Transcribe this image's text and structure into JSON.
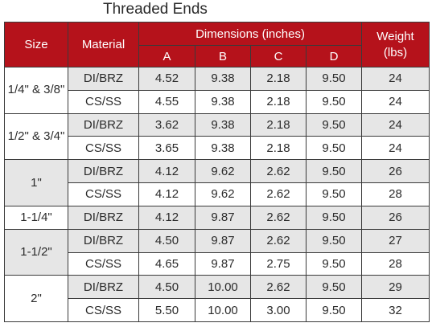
{
  "title": "Threaded Ends",
  "header": {
    "size": "Size",
    "material": "Material",
    "dimensions": "Dimensions (inches)",
    "a": "A",
    "b": "B",
    "c": "C",
    "d": "D",
    "weight": "Weight (lbs)"
  },
  "groups": [
    {
      "size": "1/4\" & 3/8\"",
      "rows": [
        {
          "material": "DI/BRZ",
          "a": "4.52",
          "b": "9.38",
          "c": "2.18",
          "d": "9.50",
          "weight": "24"
        },
        {
          "material": "CS/SS",
          "a": "4.55",
          "b": "9.38",
          "c": "2.18",
          "d": "9.50",
          "weight": "24"
        }
      ]
    },
    {
      "size": "1/2\" & 3/4\"",
      "rows": [
        {
          "material": "DI/BRZ",
          "a": "3.62",
          "b": "9.38",
          "c": "2.18",
          "d": "9.50",
          "weight": "24"
        },
        {
          "material": "CS/SS",
          "a": "3.65",
          "b": "9.38",
          "c": "2.18",
          "d": "9.50",
          "weight": "24"
        }
      ]
    },
    {
      "size": "1\"",
      "rows": [
        {
          "material": "DI/BRZ",
          "a": "4.12",
          "b": "9.62",
          "c": "2.62",
          "d": "9.50",
          "weight": "26"
        },
        {
          "material": "CS/SS",
          "a": "4.12",
          "b": "9.62",
          "c": "2.62",
          "d": "9.50",
          "weight": "28"
        }
      ]
    },
    {
      "size": "1-1/4\"",
      "rows": [
        {
          "material": "DI/BRZ",
          "a": "4.12",
          "b": "9.87",
          "c": "2.62",
          "d": "9.50",
          "weight": "26"
        }
      ]
    },
    {
      "size": "1-1/2\"",
      "rows": [
        {
          "material": "DI/BRZ",
          "a": "4.50",
          "b": "9.87",
          "c": "2.62",
          "d": "9.50",
          "weight": "27"
        },
        {
          "material": "CS/SS",
          "a": "4.65",
          "b": "9.87",
          "c": "2.75",
          "d": "9.50",
          "weight": "28"
        }
      ]
    },
    {
      "size": "2\"",
      "rows": [
        {
          "material": "DI/BRZ",
          "a": "4.50",
          "b": "10.00",
          "c": "2.62",
          "d": "9.50",
          "weight": "29"
        },
        {
          "material": "CS/SS",
          "a": "5.50",
          "b": "10.00",
          "c": "3.00",
          "d": "9.50",
          "weight": "32"
        }
      ]
    }
  ]
}
